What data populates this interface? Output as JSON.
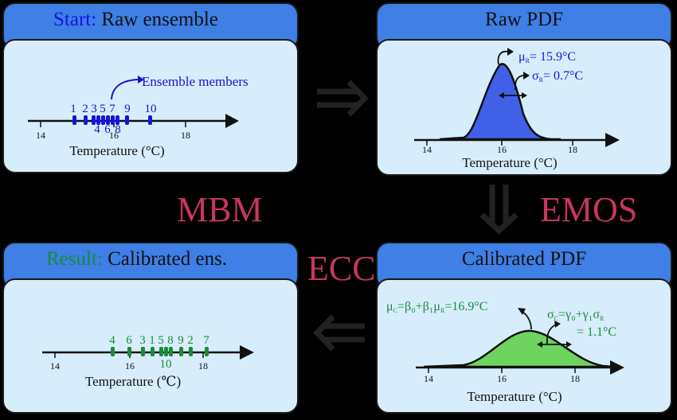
{
  "panels": {
    "raw_ensemble": {
      "title_prefix": "Start:",
      "title_main": "Raw ensemble",
      "annotation": "Ensemble members",
      "upper_labels": [
        "1",
        "2",
        "3",
        "5",
        "7",
        "9",
        "10"
      ],
      "lower_labels": [
        "4",
        "6",
        "8"
      ],
      "ticks": [
        "14",
        "16",
        "18"
      ],
      "xlabel": "Temperature (°C)",
      "color": "#1515d8"
    },
    "raw_pdf": {
      "title": "Raw PDF",
      "mu": "μ",
      "mu_sub": "R",
      "mu_val": "= 15.9°C",
      "sigma": "σ",
      "sigma_sub": "R",
      "sigma_val": "= 0.7°C",
      "ticks": [
        "14",
        "16",
        "18"
      ],
      "xlabel": "Temperature (°C)",
      "fill": "#4060e8"
    },
    "calibrated_pdf": {
      "title": "Calibrated PDF",
      "mu_eq": "μ",
      "mu_eq_sub": "C",
      "mu_eq_rest": "=β₀+β₁μ",
      "mu_eq_sub2": "R",
      "mu_eq_val": "=16.9°C",
      "sigma_eq": "σ",
      "sigma_eq_sub": "C",
      "sigma_eq_rest": "=γ₀+γ₁σ",
      "sigma_eq_sub2": "R",
      "sigma_eq_val": "= 1.1°C",
      "ticks": [
        "14",
        "16",
        "18"
      ],
      "xlabel": "Temperature (°C)",
      "fill": "#6fd45f",
      "text_color": "#1b8a3a"
    },
    "calibrated_ens": {
      "title_prefix": "Result:",
      "title_main": "Calibrated ens.",
      "upper_labels": [
        "4",
        "6",
        "3",
        "1",
        "5",
        "8",
        "9",
        "2",
        "7"
      ],
      "lower_labels": [
        "10"
      ],
      "ticks": [
        "14",
        "16",
        "18"
      ],
      "xlabel": "Temperature (℃)",
      "color": "#1b8a3a"
    }
  },
  "methods": {
    "mbm": "MBM",
    "emos": "EMOS",
    "ecc": "ECC"
  },
  "colors": {
    "header": "#3f7fe6",
    "panel_bg": "#d7edfb",
    "method_text": "#c8365a",
    "arrow": "#222222"
  }
}
